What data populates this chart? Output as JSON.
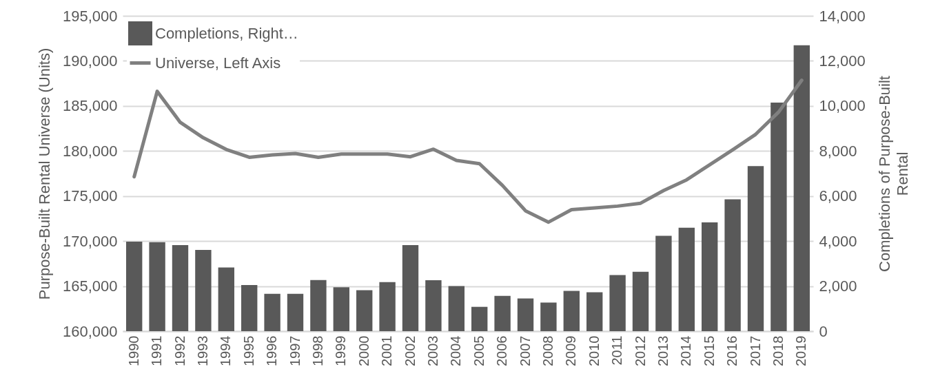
{
  "chart_data": {
    "type": "bar",
    "categories": [
      "1990",
      "1991",
      "1992",
      "1993",
      "1994",
      "1995",
      "1996",
      "1997",
      "1998",
      "1999",
      "2000",
      "2001",
      "2002",
      "2003",
      "2004",
      "2005",
      "2006",
      "2007",
      "2008",
      "2009",
      "2010",
      "2011",
      "2012",
      "2013",
      "2014",
      "2015",
      "2016",
      "2017",
      "2018",
      "2019"
    ],
    "series": [
      {
        "name": "Completions, Right…",
        "type": "bar",
        "axis": "y2",
        "color": "#595959",
        "values": [
          3970,
          3950,
          3820,
          3610,
          2830,
          2050,
          1660,
          1660,
          2270,
          1950,
          1820,
          2180,
          3820,
          2260,
          2000,
          1080,
          1570,
          1450,
          1270,
          1790,
          1730,
          2490,
          2640,
          4230,
          4590,
          4830,
          5850,
          7330,
          10150,
          12690
        ]
      },
      {
        "name": "Universe, Left Axis",
        "type": "line",
        "axis": "y",
        "color": "#808080",
        "values": [
          177140,
          186620,
          183180,
          181470,
          180170,
          179300,
          179560,
          179710,
          179300,
          179660,
          179660,
          179660,
          179360,
          180200,
          178950,
          178590,
          176170,
          173360,
          172100,
          173490,
          173670,
          173880,
          174200,
          175610,
          176800,
          178460,
          180120,
          181850,
          184330,
          187850
        ]
      }
    ],
    "ylabel": "Purpose-Built Rental Universe (Units)",
    "y2label": "Completions of Purpose-Built Rental",
    "ylim": [
      160000,
      195000
    ],
    "yticks": [
      {
        "value": 160000,
        "label": "160,000"
      },
      {
        "value": 165000,
        "label": "165,000"
      },
      {
        "value": 170000,
        "label": "170,000"
      },
      {
        "value": 175000,
        "label": "175,000"
      },
      {
        "value": 180000,
        "label": "180,000"
      },
      {
        "value": 185000,
        "label": "185,000"
      },
      {
        "value": 190000,
        "label": "190,000"
      },
      {
        "value": 195000,
        "label": "195,000"
      }
    ],
    "y2lim": [
      0,
      14000
    ],
    "y2ticks": [
      0,
      {
        "value": 2000,
        "label": "2,000"
      },
      {
        "value": 4000,
        "label": "4,000"
      },
      {
        "value": 6000,
        "label": "6,000"
      },
      {
        "value": 8000,
        "label": "8,000"
      },
      {
        "value": 10000,
        "label": "10,000"
      },
      {
        "value": 12000,
        "label": "12,000"
      },
      {
        "value": 14000,
        "label": "14,000"
      }
    ],
    "grid": "y",
    "legend": "top left"
  }
}
